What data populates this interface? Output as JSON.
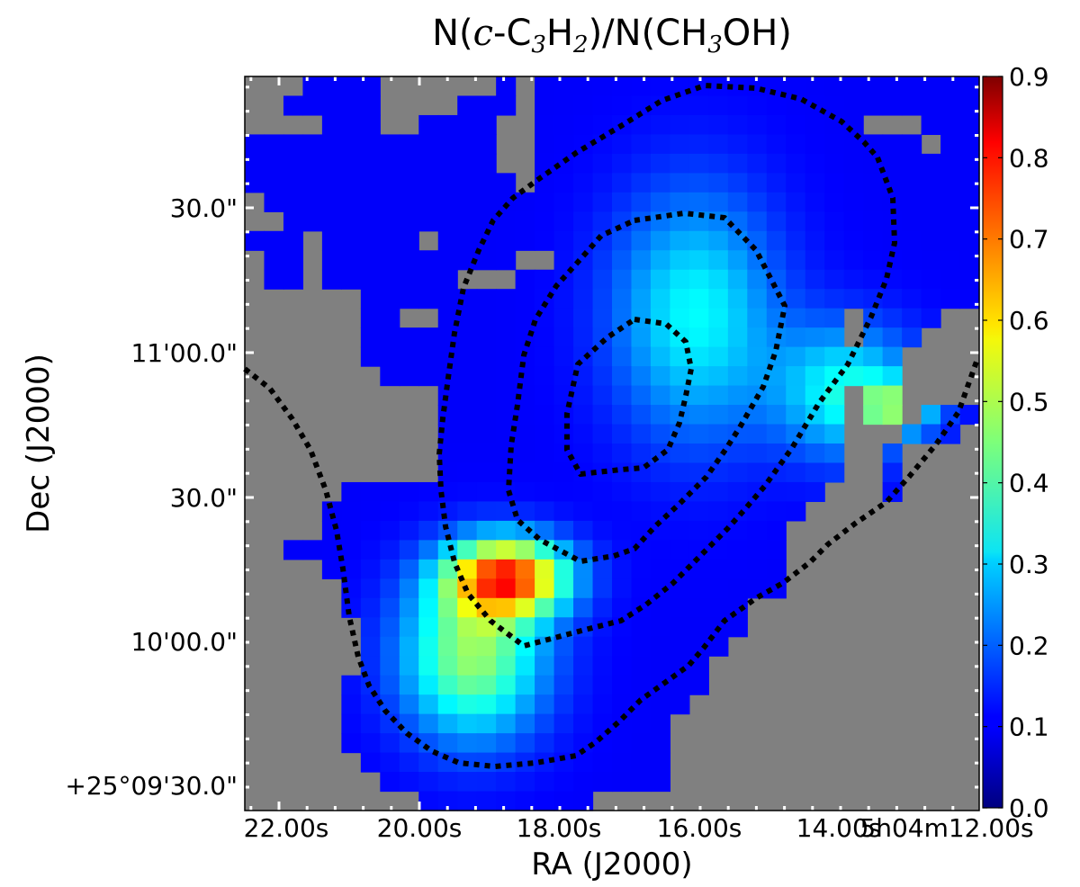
{
  "chart_data": {
    "type": "heatmap",
    "title": {
      "parts": [
        {
          "text": "N(",
          "style": "normal"
        },
        {
          "text": "c",
          "style": "italic"
        },
        {
          "text": "-C",
          "style": "normal"
        },
        {
          "text": "3",
          "style": "sub"
        },
        {
          "text": "H",
          "style": "normal"
        },
        {
          "text": "2",
          "style": "sub"
        },
        {
          "text": ")/N(CH",
          "style": "normal"
        },
        {
          "text": "3",
          "style": "sub"
        },
        {
          "text": "OH)",
          "style": "normal"
        }
      ]
    },
    "xlabel": "RA (J2000)",
    "ylabel": "Dec (J2000)",
    "x_ticks": [
      "22.00s",
      "20.00s",
      "18.00s",
      "16.00s",
      "14.00s",
      "5h04m12.00s"
    ],
    "y_ticks": [
      "30.0\"",
      "11'00.0\"",
      "30.0\"",
      "10'00.0\"",
      "+25°09'30.0\""
    ],
    "colorbar": {
      "colormap": "jet",
      "range": [
        0.0,
        0.9
      ],
      "tick_values": [
        0.0,
        0.1,
        0.2,
        0.3,
        0.4,
        0.5,
        0.6,
        0.7,
        0.8,
        0.9
      ],
      "tick_labels": [
        "0.0",
        "0.1",
        "0.2",
        "0.3",
        "0.4",
        "0.5",
        "0.6",
        "0.7",
        "0.8",
        "0.9"
      ]
    },
    "grid": false,
    "background_color": "#808080",
    "contour_color": "#000000",
    "grid_shape": [
      38,
      38
    ],
    "value_field": {
      "background_ratio": 0.12,
      "peaks": [
        {
          "col": 13.1,
          "row": 25.4,
          "amplitude": 0.58,
          "sigma_col": 2.2,
          "sigma_row": 1.4
        },
        {
          "col": 11.3,
          "row": 29.5,
          "amplitude": 0.36,
          "sigma_col": 2.6,
          "sigma_row": 3.0
        },
        {
          "col": 22.8,
          "row": 11.8,
          "amplitude": 0.23,
          "sigma_col": 3.0,
          "sigma_row": 4.5
        },
        {
          "col": 30.7,
          "row": 15.8,
          "amplitude": 0.24,
          "sigma_col": 2.6,
          "sigma_row": 2.4
        },
        {
          "col": 33.3,
          "row": 16.6,
          "amplitude": 0.24,
          "sigma_col": 1.4,
          "sigma_row": 0.9
        }
      ]
    },
    "data_mask_rows": [
      [
        [
          3,
          6
        ],
        [
          13,
          13
        ],
        [
          15,
          37
        ]
      ],
      [
        [
          2,
          6
        ],
        [
          11,
          13
        ],
        [
          15,
          37
        ]
      ],
      [
        [
          4,
          6
        ],
        [
          9,
          12
        ],
        [
          15,
          31
        ],
        [
          35,
          37
        ]
      ],
      [
        [
          0,
          12
        ],
        [
          15,
          34
        ],
        [
          36,
          37
        ]
      ],
      [
        [
          0,
          12
        ],
        [
          15,
          37
        ]
      ],
      [
        [
          0,
          13
        ],
        [
          15,
          37
        ]
      ],
      [
        [
          1,
          37
        ]
      ],
      [
        [
          2,
          37
        ]
      ],
      [
        [
          0,
          2
        ],
        [
          4,
          8
        ],
        [
          10,
          37
        ]
      ],
      [
        [
          1,
          2
        ],
        [
          4,
          13
        ],
        [
          16,
          37
        ]
      ],
      [
        [
          1,
          2
        ],
        [
          4,
          10
        ],
        [
          14,
          37
        ]
      ],
      [
        [
          6,
          37
        ]
      ],
      [
        [
          6,
          7
        ],
        [
          10,
          30
        ],
        [
          32,
          35
        ]
      ],
      [
        [
          6,
          30
        ],
        [
          32,
          34
        ]
      ],
      [
        [
          6,
          33
        ]
      ],
      [
        [
          7,
          33
        ]
      ],
      [
        [
          10,
          30
        ],
        [
          32,
          33
        ]
      ],
      [
        [
          10,
          30
        ],
        [
          32,
          33
        ],
        [
          35,
          37
        ]
      ],
      [
        [
          10,
          30
        ],
        [
          34,
          36
        ]
      ],
      [
        [
          10,
          30
        ],
        [
          33,
          33
        ]
      ],
      [
        [
          10,
          30
        ],
        [
          33,
          33
        ]
      ],
      [
        [
          5,
          29
        ],
        [
          33,
          33
        ]
      ],
      [
        [
          4,
          28
        ]
      ],
      [
        [
          4,
          27
        ]
      ],
      [
        [
          2,
          27
        ]
      ],
      [
        [
          4,
          27
        ]
      ],
      [
        [
          5,
          27
        ]
      ],
      [
        [
          5,
          25
        ]
      ],
      [
        [
          6,
          25
        ]
      ],
      [
        [
          6,
          24
        ]
      ],
      [
        [
          6,
          23
        ]
      ],
      [
        [
          5,
          23
        ]
      ],
      [
        [
          5,
          22
        ]
      ],
      [
        [
          5,
          21
        ]
      ],
      [
        [
          5,
          21
        ]
      ],
      [
        [
          6,
          21
        ]
      ],
      [
        [
          7,
          21
        ]
      ],
      [
        [
          9,
          17
        ]
      ]
    ],
    "contour_paths": [
      "M272 410 L300 432 L325 466 L345 500 L362 545 L374 590 L381 632 L388 685 L398 730 L410 762 L428 790 L452 815 L480 835 L510 848 L550 852 L595 848 L640 840 L662 825 L688 802 L712 778 L740 758 L765 740 L782 720 L805 690 L840 665 L870 648 L900 625 L920 605 L950 582 L985 558 L1010 530 L1040 494 L1065 458 L1085 402",
      "M975 175 L992 220 L994 270 L985 310 L968 352 L942 405 L910 448 L880 498 L850 540 L826 568 L808 588 L780 616 L748 648 L718 672 L690 690 L650 700 L620 708 L582 718 L545 690 L520 660 L505 625 L495 585 L490 545 L488 505 L492 465 L498 420 L505 370 L515 320 L532 278 L548 245 L570 220 L600 198 L640 170 L690 140 L735 112 L783 95 L840 98 L890 110 L935 135 L960 158 Z",
      "M705 245 L760 237 L805 242 L840 278 L872 340 L862 390 L848 430 L822 475 L806 500 L785 530 L755 560 L728 585 L705 610 L682 618 L645 624 L600 600 L575 578 L565 545 L568 495 L575 450 L582 395 L595 355 L618 318 L645 288 L668 262 Z",
      "M705 355 L740 360 L762 380 L768 410 L762 440 L755 470 L742 500 L715 520 L690 522 L645 527 L630 500 L630 460 L642 405 L675 375 Z"
    ]
  }
}
